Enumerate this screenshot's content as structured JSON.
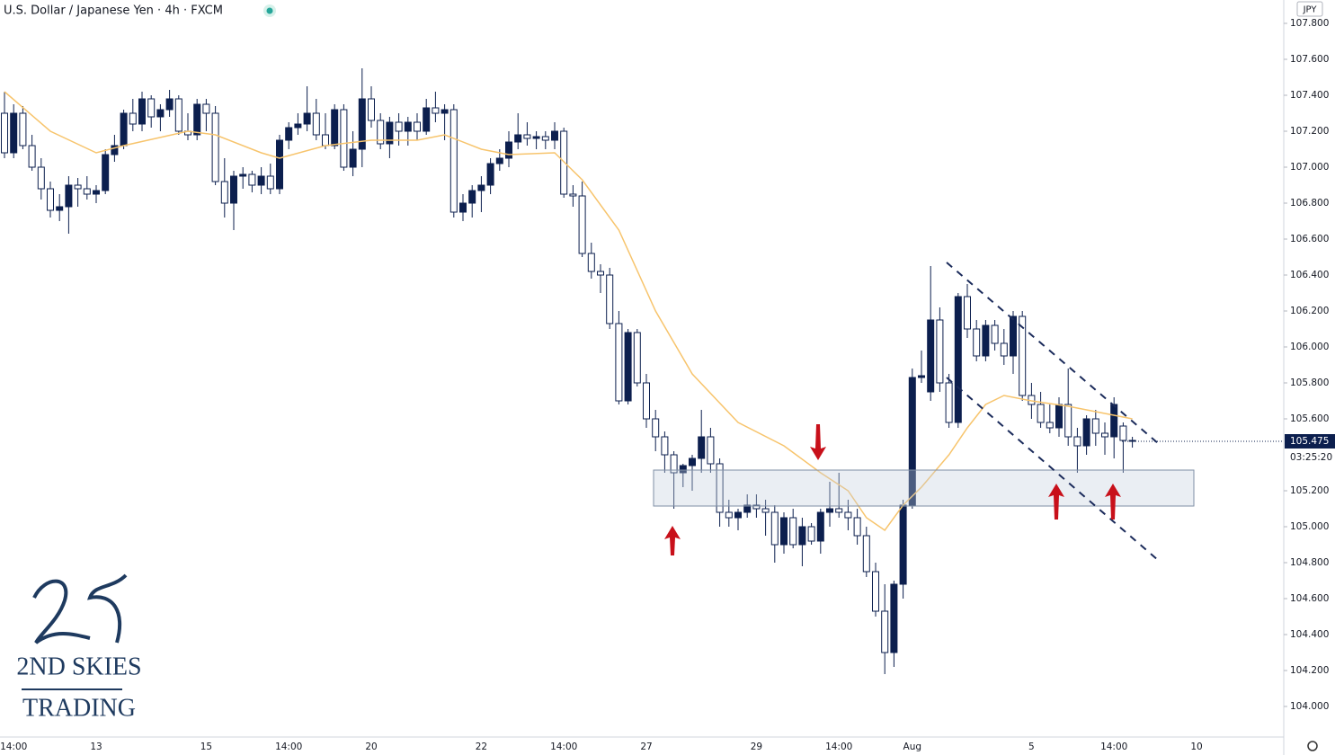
{
  "chart_data": {
    "type": "candlestick",
    "title": "U.S. Dollar / Japanese Yen · 4h · FXCM",
    "currency": "JPY",
    "up_color": "#0c1f4e",
    "down_color": "#ffffff",
    "ylim": [
      103.83,
      107.93
    ],
    "yticks": [
      {
        "value": 104.0,
        "label": "104.000"
      },
      {
        "value": 104.2,
        "label": "104.200"
      },
      {
        "value": 104.4,
        "label": "104.400"
      },
      {
        "value": 104.6,
        "label": "104.600"
      },
      {
        "value": 104.8,
        "label": "104.800"
      },
      {
        "value": 105.0,
        "label": "105.000"
      },
      {
        "value": 105.2,
        "label": "105.200"
      },
      {
        "value": 105.6,
        "label": "105.600"
      },
      {
        "value": 105.8,
        "label": "105.800"
      },
      {
        "value": 106.0,
        "label": "106.000"
      },
      {
        "value": 106.2,
        "label": "106.200"
      },
      {
        "value": 106.4,
        "label": "106.400"
      },
      {
        "value": 106.6,
        "label": "106.600"
      },
      {
        "value": 106.8,
        "label": "106.800"
      },
      {
        "value": 107.0,
        "label": "107.000"
      },
      {
        "value": 107.2,
        "label": "107.200"
      },
      {
        "value": 107.4,
        "label": "107.400"
      },
      {
        "value": 107.6,
        "label": "107.600"
      },
      {
        "value": 107.8,
        "label": "107.800"
      }
    ],
    "last_price": 105.475,
    "countdown": "03:25:20",
    "categories": [
      null,
      "14:00",
      null,
      null,
      null,
      null,
      null,
      null,
      null,
      null,
      "13",
      null,
      null,
      null,
      null,
      null,
      null,
      null,
      null,
      null,
      null,
      null,
      "15",
      null,
      null,
      null,
      null,
      null,
      null,
      null,
      null,
      "14:00",
      null,
      null,
      null,
      null,
      null,
      null,
      null,
      null,
      "20",
      null,
      null,
      null,
      null,
      null,
      null,
      null,
      null,
      null,
      null,
      null,
      "22",
      null,
      null,
      null,
      null,
      null,
      null,
      null,
      null,
      "14:00",
      null,
      null,
      null,
      null,
      null,
      null,
      null,
      null,
      "27",
      null,
      null,
      null,
      null,
      null,
      null,
      null,
      null,
      null,
      null,
      null,
      "29",
      null,
      null,
      null,
      null,
      null,
      null,
      null,
      null,
      "14:00",
      null,
      null,
      null,
      null,
      null,
      null,
      null,
      "Aug",
      null,
      null,
      null,
      null,
      null,
      null,
      null,
      null,
      null,
      null,
      null,
      null,
      "5",
      null,
      null,
      null,
      null,
      null,
      null,
      null,
      null,
      "14:00",
      null,
      null,
      null,
      null,
      null,
      null,
      null,
      null,
      "10"
    ],
    "candles": [
      [
        107.3,
        107.42,
        107.05,
        107.08
      ],
      [
        107.08,
        107.35,
        107.05,
        107.3
      ],
      [
        107.3,
        107.34,
        107.1,
        107.12
      ],
      [
        107.12,
        107.18,
        106.98,
        107.0
      ],
      [
        107.0,
        107.05,
        106.82,
        106.88
      ],
      [
        106.88,
        106.92,
        106.72,
        106.76
      ],
      [
        106.76,
        106.85,
        106.7,
        106.78
      ],
      [
        106.78,
        106.95,
        106.63,
        106.9
      ],
      [
        106.9,
        106.94,
        106.78,
        106.88
      ],
      [
        106.88,
        106.95,
        106.82,
        106.85
      ],
      [
        106.85,
        106.9,
        106.8,
        106.87
      ],
      [
        106.87,
        107.1,
        106.85,
        107.07
      ],
      [
        107.07,
        107.18,
        107.03,
        107.12
      ],
      [
        107.12,
        107.32,
        107.1,
        107.3
      ],
      [
        107.3,
        107.38,
        107.2,
        107.24
      ],
      [
        107.24,
        107.42,
        107.2,
        107.38
      ],
      [
        107.38,
        107.4,
        107.22,
        107.28
      ],
      [
        107.28,
        107.35,
        107.2,
        107.32
      ],
      [
        107.32,
        107.43,
        107.28,
        107.38
      ],
      [
        107.38,
        107.4,
        107.18,
        107.2
      ],
      [
        107.2,
        107.3,
        107.15,
        107.18
      ],
      [
        107.18,
        107.38,
        107.15,
        107.35
      ],
      [
        107.35,
        107.38,
        107.2,
        107.3
      ],
      [
        107.3,
        107.34,
        106.9,
        106.92
      ],
      [
        106.92,
        107.05,
        106.72,
        106.8
      ],
      [
        106.8,
        106.98,
        106.65,
        106.95
      ],
      [
        106.95,
        107.0,
        106.88,
        106.96
      ],
      [
        106.96,
        106.98,
        106.86,
        106.9
      ],
      [
        106.9,
        107.0,
        106.85,
        106.95
      ],
      [
        106.95,
        107.02,
        106.85,
        106.88
      ],
      [
        106.88,
        107.18,
        106.85,
        107.15
      ],
      [
        107.15,
        107.25,
        107.1,
        107.22
      ],
      [
        107.22,
        107.3,
        107.18,
        107.24
      ],
      [
        107.24,
        107.45,
        107.2,
        107.3
      ],
      [
        107.3,
        107.38,
        107.15,
        107.18
      ],
      [
        107.18,
        107.3,
        107.1,
        107.12
      ],
      [
        107.12,
        107.35,
        107.1,
        107.32
      ],
      [
        107.32,
        107.35,
        106.98,
        107.0
      ],
      [
        107.0,
        107.2,
        106.95,
        107.1
      ],
      [
        107.1,
        107.55,
        107.0,
        107.38
      ],
      [
        107.38,
        107.45,
        107.22,
        107.26
      ],
      [
        107.26,
        107.3,
        107.1,
        107.13
      ],
      [
        107.13,
        107.28,
        107.05,
        107.25
      ],
      [
        107.25,
        107.3,
        107.12,
        107.2
      ],
      [
        107.2,
        107.28,
        107.12,
        107.25
      ],
      [
        107.25,
        107.3,
        107.15,
        107.2
      ],
      [
        107.2,
        107.38,
        107.18,
        107.33
      ],
      [
        107.33,
        107.42,
        107.25,
        107.3
      ],
      [
        107.3,
        107.35,
        107.15,
        107.32
      ],
      [
        107.32,
        107.35,
        106.72,
        106.75
      ],
      [
        106.75,
        106.85,
        106.7,
        106.8
      ],
      [
        106.8,
        106.9,
        106.72,
        106.87
      ],
      [
        106.87,
        106.95,
        106.75,
        106.9
      ],
      [
        106.9,
        107.05,
        106.85,
        107.02
      ],
      [
        107.02,
        107.1,
        106.98,
        107.05
      ],
      [
        107.05,
        107.2,
        107.0,
        107.14
      ],
      [
        107.14,
        107.3,
        107.1,
        107.18
      ],
      [
        107.18,
        107.25,
        107.12,
        107.16
      ],
      [
        107.16,
        107.2,
        107.1,
        107.17
      ],
      [
        107.17,
        107.2,
        107.1,
        107.15
      ],
      [
        107.15,
        107.25,
        107.1,
        107.2
      ],
      [
        107.2,
        107.22,
        106.83,
        106.85
      ],
      [
        106.85,
        106.9,
        106.78,
        106.84
      ],
      [
        106.84,
        106.92,
        106.5,
        106.52
      ],
      [
        106.52,
        106.58,
        106.38,
        106.42
      ],
      [
        106.42,
        106.46,
        106.3,
        106.4
      ],
      [
        106.4,
        106.44,
        106.1,
        106.13
      ],
      [
        106.13,
        106.2,
        105.68,
        105.7
      ],
      [
        105.7,
        106.1,
        105.68,
        106.08
      ],
      [
        106.08,
        106.1,
        105.78,
        105.8
      ],
      [
        105.8,
        105.85,
        105.55,
        105.6
      ],
      [
        105.6,
        105.65,
        105.42,
        105.5
      ],
      [
        105.5,
        105.53,
        105.3,
        105.4
      ],
      [
        105.4,
        105.42,
        105.1,
        105.3
      ],
      [
        105.3,
        105.35,
        105.22,
        105.34
      ],
      [
        105.34,
        105.4,
        105.2,
        105.38
      ],
      [
        105.38,
        105.65,
        105.3,
        105.5
      ],
      [
        105.5,
        105.55,
        105.3,
        105.35
      ],
      [
        105.35,
        105.38,
        105.0,
        105.08
      ],
      [
        105.08,
        105.15,
        105.0,
        105.05
      ],
      [
        105.05,
        105.1,
        104.98,
        105.08
      ],
      [
        105.08,
        105.18,
        105.05,
        105.12
      ],
      [
        105.12,
        105.18,
        105.05,
        105.1
      ],
      [
        105.1,
        105.15,
        104.95,
        105.08
      ],
      [
        105.08,
        105.12,
        104.8,
        104.9
      ],
      [
        104.9,
        105.08,
        104.85,
        105.05
      ],
      [
        105.05,
        105.1,
        104.88,
        104.9
      ],
      [
        104.9,
        105.05,
        104.78,
        105.0
      ],
      [
        105.0,
        105.02,
        104.9,
        104.92
      ],
      [
        104.92,
        105.1,
        104.85,
        105.08
      ],
      [
        105.08,
        105.25,
        105.0,
        105.1
      ],
      [
        105.1,
        105.3,
        105.05,
        105.08
      ],
      [
        105.08,
        105.15,
        104.98,
        105.05
      ],
      [
        105.05,
        105.1,
        104.9,
        104.95
      ],
      [
        104.95,
        105.0,
        104.72,
        104.75
      ],
      [
        104.75,
        104.8,
        104.5,
        104.53
      ],
      [
        104.53,
        104.68,
        104.18,
        104.3
      ],
      [
        104.3,
        104.7,
        104.22,
        104.68
      ],
      [
        104.68,
        105.15,
        104.6,
        105.12
      ],
      [
        105.12,
        105.88,
        105.1,
        105.83
      ],
      [
        105.83,
        105.98,
        105.8,
        105.84
      ],
      [
        105.75,
        106.45,
        105.7,
        106.15
      ],
      [
        106.15,
        106.22,
        105.75,
        105.8
      ],
      [
        105.8,
        105.85,
        105.55,
        105.58
      ],
      [
        105.58,
        106.3,
        105.55,
        106.28
      ],
      [
        106.28,
        106.35,
        106.05,
        106.1
      ],
      [
        106.1,
        106.15,
        105.92,
        105.95
      ],
      [
        105.95,
        106.15,
        105.92,
        106.12
      ],
      [
        106.12,
        106.15,
        105.98,
        106.02
      ],
      [
        106.02,
        106.1,
        105.9,
        105.95
      ],
      [
        105.95,
        106.2,
        105.85,
        106.17
      ],
      [
        106.17,
        106.2,
        105.7,
        105.73
      ],
      [
        105.73,
        105.8,
        105.6,
        105.68
      ],
      [
        105.68,
        105.75,
        105.55,
        105.58
      ],
      [
        105.58,
        105.68,
        105.52,
        105.55
      ],
      [
        105.55,
        105.72,
        105.5,
        105.68
      ],
      [
        105.68,
        105.88,
        105.45,
        105.5
      ],
      [
        105.5,
        105.55,
        105.3,
        105.45
      ],
      [
        105.45,
        105.62,
        105.4,
        105.6
      ],
      [
        105.6,
        105.65,
        105.45,
        105.52
      ],
      [
        105.52,
        105.58,
        105.4,
        105.5
      ],
      [
        105.5,
        105.72,
        105.38,
        105.68
      ],
      [
        105.56,
        105.58,
        105.3,
        105.48
      ],
      [
        105.48,
        105.5,
        105.44,
        105.475
      ],
      null,
      null,
      null,
      null,
      null,
      null,
      null
    ],
    "ma": {
      "color": "#f7c46c",
      "x": [
        0,
        5,
        10,
        13,
        20,
        23,
        28,
        30,
        35,
        40,
        45,
        48,
        52,
        55,
        60,
        63,
        67,
        71,
        75,
        80,
        85,
        89,
        92,
        94,
        96,
        98,
        100,
        103,
        105,
        107,
        109,
        112,
        116,
        120,
        123
      ],
      "values": [
        107.42,
        107.2,
        107.08,
        107.12,
        107.2,
        107.18,
        107.08,
        107.05,
        107.12,
        107.15,
        107.15,
        107.18,
        107.1,
        107.07,
        107.08,
        106.93,
        106.65,
        106.2,
        105.85,
        105.58,
        105.45,
        105.3,
        105.2,
        105.05,
        104.98,
        105.12,
        105.22,
        105.4,
        105.55,
        105.68,
        105.73,
        105.7,
        105.67,
        105.63,
        105.6
      ]
    }
  },
  "logo": {
    "line1": "2ND SKIES",
    "line2": "TRADING"
  }
}
